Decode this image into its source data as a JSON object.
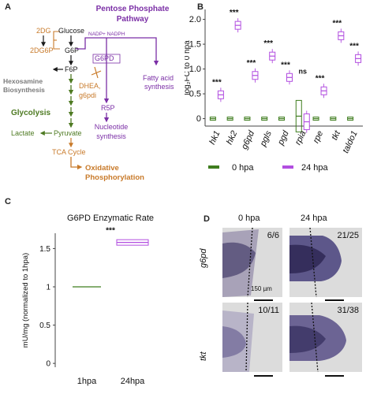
{
  "panel_labels": {
    "A": "A",
    "B": "B",
    "C": "C",
    "D": "D"
  },
  "colors": {
    "orange": "#c87a2a",
    "purple": "#7b2fa6",
    "green": "#4e7a22",
    "grey": "#7a7a7a",
    "black": "#1a1a1a",
    "hpa0": "#3f7d1f",
    "hpa24": "#b24ee0"
  },
  "pathway": {
    "ppp_title_line1": "Pentose Phosphate",
    "ppp_title_line2": "Pathway",
    "two_dg": "2DG",
    "two_dg6p": "2DG6P",
    "glucose": "Glucose",
    "g6p": "G6P",
    "f6p": "F6P",
    "nadp": "NADP+ NADPH",
    "g6pd": "G6PD",
    "dhea_line1": "DHEA,",
    "dhea_line2": "g6pdi",
    "r5p": "R5P",
    "fatty_line1": "Fatty acid",
    "fatty_line2": "synthesis",
    "nucleotide_line1": "Nucleotide",
    "nucleotide_line2": "synthesis",
    "hexosamine_line1": "Hexosamine",
    "hexosamine_line2": "Biosynthesis",
    "glycolysis": "Glycolysis",
    "lactate": "Lactate",
    "pyruvate": "Pyruvate",
    "tca": "TCA Cycle",
    "oxphos_line1": "Oxidative",
    "oxphos_line2": "Phosphorylation"
  },
  "panel_b": {
    "ylabel": "log₂FC to 0 hpa",
    "yticks": [
      "0",
      "0.5",
      "1.0",
      "1.5",
      "2.0"
    ],
    "legend": {
      "hpa0": "0 hpa",
      "hpa24": "24 hpa"
    },
    "chart_data": {
      "type": "box",
      "ylim": [
        -0.15,
        2.2
      ],
      "categories": [
        "hk1",
        "hk2",
        "g6pd",
        "pgls",
        "pgd",
        "rpia",
        "rpe",
        "tkt",
        "taldo1"
      ],
      "series": [
        {
          "name": "0 hpa",
          "values": [
            0,
            0,
            0,
            0,
            0,
            0.05,
            0,
            0,
            0
          ]
        },
        {
          "name": "24 hpa",
          "values": [
            0.48,
            1.88,
            0.87,
            1.26,
            0.83,
            0.0,
            0.56,
            1.67,
            1.21
          ]
        }
      ],
      "significance": [
        "***",
        "***",
        "***",
        "***",
        "***",
        "ns",
        "***",
        "***",
        "***"
      ]
    }
  },
  "panel_c": {
    "title": "G6PD Enzymatic Rate",
    "ylabel": "mU/mg (normalized to 1hpa)",
    "yticks": [
      "0",
      "0.5",
      "1",
      "1.5"
    ],
    "sig": "***",
    "chart_data": {
      "type": "box",
      "categories": [
        "1hpa",
        "24hpa"
      ],
      "values": [
        1.0,
        1.58
      ],
      "ylim": [
        -0.05,
        1.7
      ]
    }
  },
  "panel_d": {
    "col_labels": [
      "0 hpa",
      "24 hpa"
    ],
    "row_labels": [
      "g6pd",
      "tkt"
    ],
    "counts": [
      "6/6",
      "21/25",
      "10/11",
      "31/38"
    ],
    "scale": "150 µm"
  }
}
